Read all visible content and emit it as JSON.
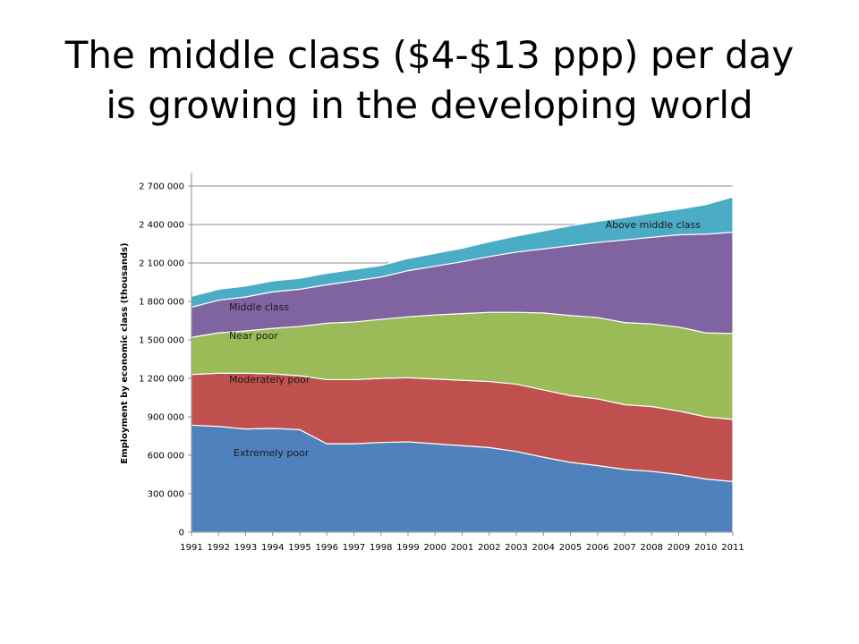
{
  "slide": {
    "title_line1": "The middle class  ($4-$13 ppp) per day",
    "title_line2": "is growing in the developing world"
  },
  "chart_data": {
    "type": "area",
    "stacked": true,
    "title": "",
    "xlabel": "",
    "ylabel": "Employment by economic class (thousands)",
    "ylim": [
      0,
      2700000
    ],
    "yticks": [
      0,
      300000,
      600000,
      900000,
      1200000,
      1500000,
      1800000,
      2100000,
      2400000,
      2700000
    ],
    "ytick_labels": [
      "0",
      "300 000",
      "600 000",
      "900 000",
      "1 200 000",
      "1 500 000",
      "1 800 000",
      "2 100 000",
      "2 400 000",
      "2 700 000"
    ],
    "grid": true,
    "legend": "inline labels",
    "x": [
      "1991",
      "1992",
      "1993",
      "1994",
      "1995",
      "1996",
      "1997",
      "1998",
      "1999",
      "2000",
      "2001",
      "2002",
      "2003",
      "2004",
      "2005",
      "2006",
      "2007",
      "2008",
      "2009",
      "2010",
      "2011"
    ],
    "series": [
      {
        "name": "Extremely poor",
        "color": "#4F81BD",
        "values": [
          835000,
          825000,
          805000,
          810000,
          800000,
          690000,
          690000,
          700000,
          705000,
          690000,
          675000,
          660000,
          630000,
          585000,
          545000,
          520000,
          490000,
          475000,
          450000,
          415000,
          395000
        ]
      },
      {
        "name": "Moderately poor",
        "color": "#C0504D",
        "values": [
          395000,
          415000,
          435000,
          425000,
          420000,
          500000,
          500000,
          500000,
          500000,
          505000,
          510000,
          515000,
          525000,
          525000,
          520000,
          520000,
          505000,
          505000,
          495000,
          485000,
          485000
        ]
      },
      {
        "name": "Near poor",
        "color": "#9BBB59",
        "values": [
          290000,
          315000,
          330000,
          355000,
          385000,
          440000,
          450000,
          460000,
          475000,
          500000,
          520000,
          540000,
          560000,
          600000,
          625000,
          635000,
          640000,
          645000,
          655000,
          655000,
          670000
        ]
      },
      {
        "name": "Middle class",
        "color": "#8064A2",
        "values": [
          235000,
          255000,
          265000,
          285000,
          290000,
          300000,
          320000,
          330000,
          360000,
          380000,
          405000,
          435000,
          470000,
          500000,
          545000,
          585000,
          645000,
          675000,
          720000,
          770000,
          790000
        ]
      },
      {
        "name": "Above middle class",
        "color": "#4BACC6",
        "values": [
          85000,
          85000,
          85000,
          85000,
          85000,
          90000,
          90000,
          90000,
          95000,
          100000,
          105000,
          115000,
          125000,
          140000,
          155000,
          165000,
          175000,
          190000,
          200000,
          230000,
          275000
        ]
      }
    ]
  }
}
